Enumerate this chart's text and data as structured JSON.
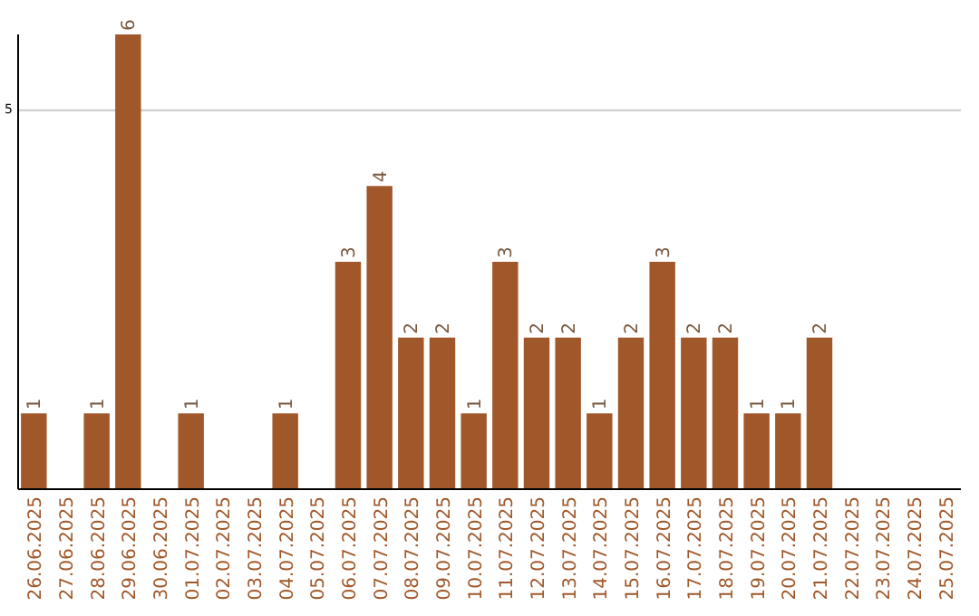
{
  "chart_data": {
    "type": "bar",
    "categories": [
      "26.06.2025",
      "27.06.2025",
      "28.06.2025",
      "29.06.2025",
      "30.06.2025",
      "01.07.2025",
      "02.07.2025",
      "03.07.2025",
      "04.07.2025",
      "05.07.2025",
      "06.07.2025",
      "07.07.2025",
      "08.07.2025",
      "09.07.2025",
      "10.07.2025",
      "11.07.2025",
      "12.07.2025",
      "13.07.2025",
      "14.07.2025",
      "15.07.2025",
      "16.07.2025",
      "17.07.2025",
      "18.07.2025",
      "19.07.2025",
      "20.07.2025",
      "21.07.2025",
      "22.07.2025",
      "23.07.2025",
      "24.07.2025",
      "25.07.2025"
    ],
    "values": [
      1,
      0,
      1,
      6,
      0,
      1,
      0,
      0,
      1,
      0,
      3,
      4,
      2,
      2,
      1,
      3,
      2,
      2,
      1,
      2,
      3,
      2,
      2,
      1,
      1,
      2,
      0,
      0,
      0,
      0
    ],
    "value_labels": [
      "1",
      null,
      "1",
      "6",
      null,
      "1",
      null,
      null,
      "1",
      null,
      "3",
      "4",
      "2",
      "2",
      "1",
      "3",
      "2",
      "2",
      "1",
      "2",
      "3",
      "2",
      "2",
      "1",
      "1",
      "2",
      null,
      null,
      null,
      null
    ],
    "color": "#a0582a",
    "ylim": [
      0,
      6
    ],
    "yticks": [
      5
    ],
    "grid": "y"
  }
}
